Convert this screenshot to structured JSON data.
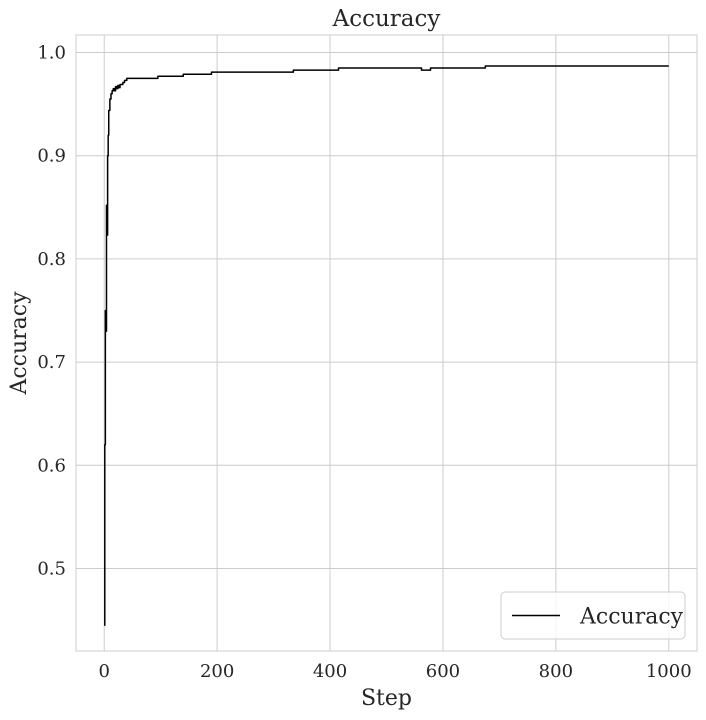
{
  "chart_data": {
    "type": "line",
    "title": "Accuracy",
    "xlabel": "Step",
    "ylabel": "Accuracy",
    "xlim": [
      -50,
      1050
    ],
    "ylim": [
      0.42,
      1.017
    ],
    "xticks": [
      0,
      200,
      400,
      600,
      800,
      1000
    ],
    "yticks": [
      0.5,
      0.6,
      0.7,
      0.8,
      0.9,
      1.0
    ],
    "xtick_labels": [
      "0",
      "200",
      "400",
      "600",
      "800",
      "1000"
    ],
    "ytick_labels": [
      "0.5",
      "0.6",
      "0.7",
      "0.8",
      "0.9",
      "1.0"
    ],
    "grid": true,
    "legend_position": "bottom-right",
    "series": [
      {
        "name": "Accuracy",
        "color": "#000000",
        "x": [
          0,
          1,
          2,
          3,
          4,
          5,
          6,
          7,
          8,
          10,
          12,
          14,
          16,
          18,
          20,
          22,
          24,
          26,
          28,
          30,
          33,
          36,
          40,
          45,
          50,
          60,
          70,
          80,
          90,
          95,
          100,
          120,
          135,
          140,
          160,
          185,
          190,
          250,
          300,
          330,
          335,
          380,
          410,
          415,
          500,
          560,
          562,
          575,
          578,
          640,
          670,
          675,
          800,
          900,
          1000
        ],
        "y": [
          0.445,
          0.62,
          0.75,
          0.73,
          0.852,
          0.823,
          0.9,
          0.92,
          0.944,
          0.955,
          0.96,
          0.963,
          0.965,
          0.963,
          0.967,
          0.965,
          0.968,
          0.966,
          0.969,
          0.969,
          0.971,
          0.973,
          0.975,
          0.975,
          0.975,
          0.975,
          0.975,
          0.975,
          0.975,
          0.977,
          0.977,
          0.977,
          0.977,
          0.979,
          0.979,
          0.979,
          0.981,
          0.981,
          0.981,
          0.981,
          0.983,
          0.983,
          0.983,
          0.985,
          0.985,
          0.985,
          0.983,
          0.983,
          0.985,
          0.985,
          0.985,
          0.987,
          0.987,
          0.987,
          0.987
        ]
      }
    ]
  }
}
